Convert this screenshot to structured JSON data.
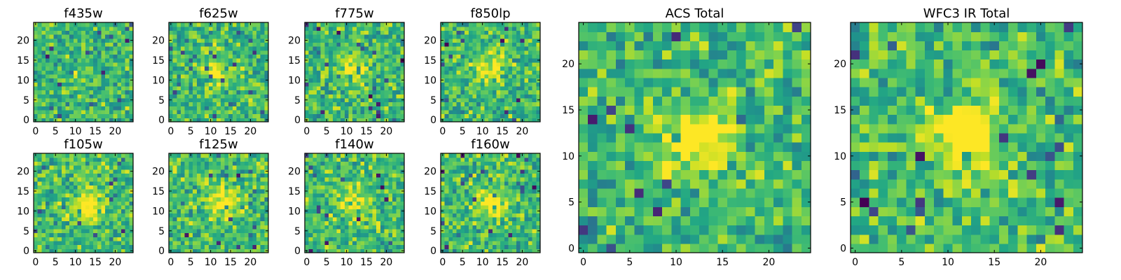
{
  "chart_data": [
    {
      "type": "heatmap",
      "title": "f435w",
      "xticks": [
        "0",
        "5",
        "10",
        "15",
        "20"
      ],
      "yticks": [
        "0",
        "5",
        "10",
        "15",
        "20"
      ],
      "grid_size": 25,
      "colormap": "viridis",
      "source_center": [
        12,
        11
      ],
      "source_strength": 0.05
    },
    {
      "type": "heatmap",
      "title": "f625w",
      "xticks": [
        "0",
        "5",
        "10",
        "15",
        "20"
      ],
      "yticks": [
        "0",
        "5",
        "10",
        "15",
        "20"
      ],
      "grid_size": 25,
      "colormap": "viridis",
      "source_center": [
        12,
        12
      ],
      "source_strength": 0.2
    },
    {
      "type": "heatmap",
      "title": "f775w",
      "xticks": [
        "0",
        "5",
        "10",
        "15",
        "20"
      ],
      "yticks": [
        "0",
        "5",
        "10",
        "15",
        "20"
      ],
      "grid_size": 25,
      "colormap": "viridis",
      "source_center": [
        12,
        13
      ],
      "source_strength": 0.35
    },
    {
      "type": "heatmap",
      "title": "f850lp",
      "xticks": [
        "0",
        "5",
        "10",
        "15",
        "20"
      ],
      "yticks": [
        "0",
        "5",
        "10",
        "15",
        "20"
      ],
      "grid_size": 25,
      "colormap": "viridis",
      "source_center": [
        12,
        13
      ],
      "source_strength": 0.35
    },
    {
      "type": "heatmap",
      "title": "f105w",
      "xticks": [
        "0",
        "5",
        "10",
        "15",
        "20"
      ],
      "yticks": [
        "0",
        "5",
        "10",
        "15",
        "20"
      ],
      "grid_size": 25,
      "colormap": "viridis",
      "source_center": [
        13,
        11
      ],
      "source_strength": 0.4
    },
    {
      "type": "heatmap",
      "title": "f125w",
      "xticks": [
        "0",
        "5",
        "10",
        "15",
        "20"
      ],
      "yticks": [
        "0",
        "5",
        "10",
        "15",
        "20"
      ],
      "grid_size": 25,
      "colormap": "viridis",
      "source_center": [
        13,
        12
      ],
      "source_strength": 0.4
    },
    {
      "type": "heatmap",
      "title": "f140w",
      "xticks": [
        "0",
        "5",
        "10",
        "15",
        "20"
      ],
      "yticks": [
        "0",
        "5",
        "10",
        "15",
        "20"
      ],
      "grid_size": 25,
      "colormap": "viridis",
      "source_center": [
        12,
        12
      ],
      "source_strength": 0.3
    },
    {
      "type": "heatmap",
      "title": "f160w",
      "xticks": [
        "0",
        "5",
        "10",
        "15",
        "20"
      ],
      "yticks": [
        "0",
        "5",
        "10",
        "15",
        "20"
      ],
      "grid_size": 25,
      "colormap": "viridis",
      "source_center": [
        12,
        12
      ],
      "source_strength": 0.4
    },
    {
      "type": "heatmap",
      "title": "ACS Total",
      "xticks": [
        "0",
        "5",
        "10",
        "15",
        "20"
      ],
      "yticks": [
        "0",
        "5",
        "10",
        "15",
        "20"
      ],
      "grid_size": 25,
      "colormap": "viridis",
      "source_center": [
        12,
        12
      ],
      "source_strength": 0.4
    },
    {
      "type": "heatmap",
      "title": "WFC3 IR Total",
      "xticks": [
        "0",
        "5",
        "10",
        "15",
        "20"
      ],
      "yticks": [
        "0",
        "5",
        "10",
        "15",
        "20"
      ],
      "grid_size": 25,
      "colormap": "viridis",
      "source_center": [
        12,
        12
      ],
      "source_strength": 0.5
    }
  ]
}
